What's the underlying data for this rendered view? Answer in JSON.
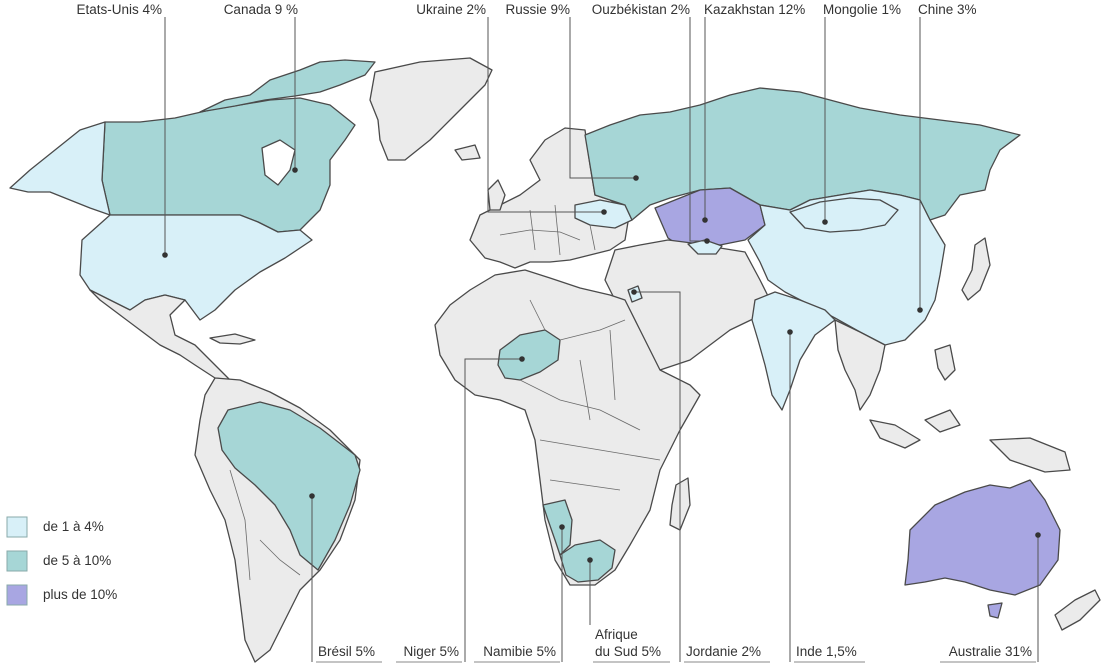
{
  "legend": [
    {
      "label": "de 1 à 4%",
      "color": "#d8f0f8"
    },
    {
      "label": "de 5 à 10%",
      "color": "#a6d6d6"
    },
    {
      "label": "plus de 10%",
      "color": "#a8a6e2"
    }
  ],
  "labels_top": {
    "usa": "Etats-Unis 4%",
    "canada": "Canada 9 %",
    "ukraine": "Ukraine 2%",
    "russie": "Russie 9%",
    "ouzbekistan": "Ouzbékistan 2%",
    "kazakhstan": "Kazakhstan 12%",
    "mongolie": "Mongolie 1%",
    "chine": "Chine 3%"
  },
  "labels_bottom": {
    "bresil": "Brésil 5%",
    "niger": "Niger 5%",
    "namibie": "Namibie 5%",
    "afrique_sud_line1": "Afrique",
    "afrique_sud_line2": "du Sud 5%",
    "jordanie": "Jordanie 2%",
    "inde": "Inde 1,5%",
    "australie": "Australie 31%"
  }
}
